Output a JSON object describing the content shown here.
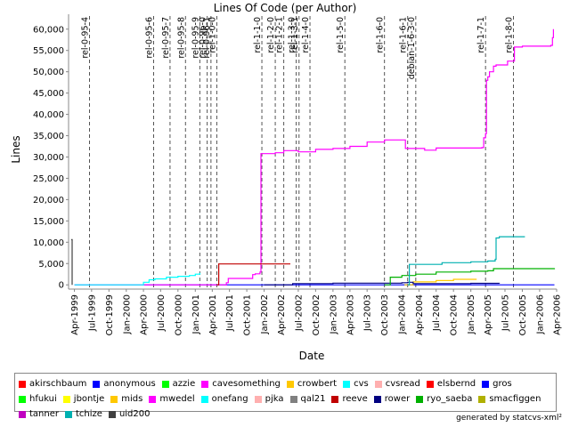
{
  "chart_data": {
    "type": "line",
    "title": "Lines Of Code (per Author)",
    "xlabel": "Date",
    "ylabel": "Lines",
    "xlim": [
      "1999-03-01",
      "2006-04-01"
    ],
    "ylim": [
      -1000,
      63500
    ],
    "y_ticks": [
      0,
      5000,
      10000,
      15000,
      20000,
      25000,
      30000,
      35000,
      40000,
      45000,
      50000,
      55000,
      60000
    ],
    "y_tick_labels": [
      "0",
      "5,000",
      "10,000",
      "15,000",
      "20,000",
      "25,000",
      "30,000",
      "35,000",
      "40,000",
      "45,000",
      "50,000",
      "55,000",
      "60,000"
    ],
    "x_ticks": [
      "1999-04-01",
      "1999-07-01",
      "1999-10-01",
      "2000-01-01",
      "2000-04-01",
      "2000-07-01",
      "2000-10-01",
      "2001-01-01",
      "2001-04-01",
      "2001-07-01",
      "2001-10-01",
      "2002-01-01",
      "2002-04-01",
      "2002-07-01",
      "2002-10-01",
      "2003-01-01",
      "2003-04-01",
      "2003-07-01",
      "2003-10-01",
      "2004-01-01",
      "2004-04-01",
      "2004-07-01",
      "2004-10-01",
      "2005-01-01",
      "2005-04-01",
      "2005-07-01",
      "2005-10-01",
      "2006-01-01",
      "2006-04-01"
    ],
    "x_tick_labels": [
      "Apr-1999",
      "Jul-1999",
      "Oct-1999",
      "Jan-2000",
      "Apr-2000",
      "Jul-2000",
      "Oct-2000",
      "Jan-2001",
      "Apr-2001",
      "Jul-2001",
      "Oct-2001",
      "Jan-2002",
      "Apr-2002",
      "Jul-2002",
      "Oct-2002",
      "Jan-2003",
      "Apr-2003",
      "Jul-2003",
      "Oct-2003",
      "Jan-2004",
      "Apr-2004",
      "Jul-2004",
      "Oct-2004",
      "Jan-2005",
      "Apr-2005",
      "Jul-2005",
      "Oct-2005",
      "Jan-2006",
      "Apr-2006"
    ],
    "grid": false,
    "legend_position": "bottom",
    "markers": [
      {
        "label": "rel-0-95-4",
        "date": "1999-06-20"
      },
      {
        "label": "rel-0-95-6",
        "date": "2000-05-25"
      },
      {
        "label": "rel-0-95-7",
        "date": "2000-08-20"
      },
      {
        "label": "rel-0-95-8",
        "date": "2000-11-10"
      },
      {
        "label": "rel-0-95-9",
        "date": "2001-01-25"
      },
      {
        "label": "rel-0-96-0",
        "date": "2001-03-05"
      },
      {
        "label": "rel-0-96-1",
        "date": "2001-03-25"
      },
      {
        "label": "rel-1-0-0",
        "date": "2001-04-25"
      },
      {
        "label": "rel-1-1-0",
        "date": "2001-12-20"
      },
      {
        "label": "rel-1-2-0",
        "date": "2002-03-01"
      },
      {
        "label": "rel-1-2-1",
        "date": "2002-04-15"
      },
      {
        "label": "rel-1-3-0",
        "date": "2002-06-20"
      },
      {
        "label": "rel-1-3-1",
        "date": "2002-07-05"
      },
      {
        "label": "rel-1-4-0",
        "date": "2002-09-01"
      },
      {
        "label": "rel-1-5-0",
        "date": "2003-03-05"
      },
      {
        "label": "rel-1-6-0",
        "date": "2003-10-01"
      },
      {
        "label": "rel-1-6-1",
        "date": "2004-02-01"
      },
      {
        "label": "debian-1-6-3-0",
        "date": "2004-03-15"
      },
      {
        "label": "rel-1-7-1",
        "date": "2005-03-20"
      },
      {
        "label": "rel-1-8-0",
        "date": "2005-08-15"
      }
    ],
    "series": [
      {
        "name": "akirschbaum",
        "color": "#ff0000",
        "points": []
      },
      {
        "name": "anonymous",
        "color": "#0000ff",
        "points": [
          [
            "1999-04-01",
            0
          ],
          [
            "2006-03-20",
            0
          ]
        ]
      },
      {
        "name": "azzie",
        "color": "#00ff00",
        "points": []
      },
      {
        "name": "cavesomething",
        "color": "#ff00ff",
        "points": []
      },
      {
        "name": "crowbert",
        "color": "#ffc800",
        "points": [
          [
            "2004-01-15",
            0
          ],
          [
            "2004-03-01",
            700
          ],
          [
            "2004-07-01",
            1000
          ],
          [
            "2004-10-01",
            1300
          ],
          [
            "2005-02-01",
            1300
          ]
        ]
      },
      {
        "name": "cvs",
        "color": "#00ffff",
        "points": []
      },
      {
        "name": "cvsread",
        "color": "#ffafaf",
        "points": []
      },
      {
        "name": "elsbernd",
        "color": "#ff0000",
        "points": []
      },
      {
        "name": "gros",
        "color": "#0000ff",
        "points": []
      },
      {
        "name": "hfukui",
        "color": "#00ff00",
        "points": []
      },
      {
        "name": "jbontje",
        "color": "#ffff00",
        "points": []
      },
      {
        "name": "mids",
        "color": "#ffc800",
        "points": []
      },
      {
        "name": "mwedel",
        "color": "#ff00ff",
        "points": [
          [
            "1999-04-01",
            0
          ],
          [
            "2001-06-15",
            500
          ],
          [
            "2001-06-25",
            1500
          ],
          [
            "2001-11-01",
            2400
          ],
          [
            "2001-11-15",
            2600
          ],
          [
            "2001-12-10",
            3000
          ],
          [
            "2001-12-15",
            30800
          ],
          [
            "2002-03-01",
            31000
          ],
          [
            "2002-04-15",
            31500
          ],
          [
            "2002-07-01",
            31200
          ],
          [
            "2002-10-01",
            31800
          ],
          [
            "2003-01-01",
            32000
          ],
          [
            "2003-04-01",
            32500
          ],
          [
            "2003-07-01",
            33500
          ],
          [
            "2003-10-01",
            34000
          ],
          [
            "2004-01-01",
            34000
          ],
          [
            "2004-01-20",
            32000
          ],
          [
            "2004-05-01",
            31600
          ],
          [
            "2004-07-01",
            32100
          ],
          [
            "2005-01-01",
            32100
          ],
          [
            "2005-03-01",
            32200
          ],
          [
            "2005-03-10",
            34500
          ],
          [
            "2005-03-20",
            35500
          ],
          [
            "2005-03-25",
            48000
          ],
          [
            "2005-04-01",
            48800
          ],
          [
            "2005-04-10",
            50000
          ],
          [
            "2005-05-01",
            51300
          ],
          [
            "2005-05-15",
            51600
          ],
          [
            "2005-07-01",
            51600
          ],
          [
            "2005-07-15",
            52500
          ],
          [
            "2005-08-15",
            52500
          ],
          [
            "2005-08-20",
            55800
          ],
          [
            "2005-10-01",
            56000
          ],
          [
            "2006-02-01",
            56000
          ],
          [
            "2006-03-01",
            56200
          ],
          [
            "2006-03-10",
            58000
          ],
          [
            "2006-03-15",
            60000
          ]
        ]
      },
      {
        "name": "onefang",
        "color": "#00ffff",
        "points": [
          [
            "1999-04-01",
            0
          ],
          [
            "2000-03-15",
            0
          ],
          [
            "2000-04-01",
            600
          ],
          [
            "2000-05-01",
            1200
          ],
          [
            "2000-06-01",
            1400
          ],
          [
            "2000-08-01",
            1800
          ],
          [
            "2000-10-01",
            2000
          ],
          [
            "2000-12-01",
            2200
          ],
          [
            "2001-01-01",
            2500
          ],
          [
            "2001-01-25",
            2800
          ]
        ]
      },
      {
        "name": "pjka",
        "color": "#ffafaf",
        "points": []
      },
      {
        "name": "qal21",
        "color": "#808080",
        "points": []
      },
      {
        "name": "reeve",
        "color": "#c00000",
        "points": [
          [
            "2001-04-25",
            0
          ],
          [
            "2001-05-05",
            4900
          ],
          [
            "2002-05-20",
            4900
          ]
        ]
      },
      {
        "name": "rower",
        "color": "#000080",
        "points": [
          [
            "2002-01-01",
            0
          ],
          [
            "2002-06-01",
            300
          ],
          [
            "2003-01-01",
            400
          ],
          [
            "2004-01-01",
            500
          ],
          [
            "2004-02-01",
            600
          ],
          [
            "2004-03-01",
            300
          ],
          [
            "2005-01-01",
            350
          ],
          [
            "2005-06-01",
            300
          ]
        ]
      },
      {
        "name": "ryo_saeba",
        "color": "#00b000",
        "points": [
          [
            "2003-10-01",
            0
          ],
          [
            "2003-11-01",
            1800
          ],
          [
            "2004-01-01",
            2200
          ],
          [
            "2004-03-15",
            2500
          ],
          [
            "2004-07-01",
            3000
          ],
          [
            "2005-01-01",
            3200
          ],
          [
            "2005-04-01",
            3300
          ],
          [
            "2005-05-01",
            3800
          ],
          [
            "2006-03-20",
            3900
          ]
        ]
      },
      {
        "name": "smacfiggen",
        "color": "#b0b000",
        "points": []
      },
      {
        "name": "tanner",
        "color": "#c000c0",
        "points": []
      },
      {
        "name": "tchize",
        "color": "#00b0b0",
        "points": [
          [
            "2004-02-01",
            0
          ],
          [
            "2004-02-10",
            4800
          ],
          [
            "2004-08-01",
            5200
          ],
          [
            "2005-01-01",
            5400
          ],
          [
            "2005-04-01",
            5600
          ],
          [
            "2005-05-10",
            6000
          ],
          [
            "2005-05-15",
            11000
          ],
          [
            "2005-06-01",
            11300
          ],
          [
            "2005-10-15",
            11300
          ]
        ]
      },
      {
        "name": "uid200",
        "color": "#404040",
        "points": [
          [
            "1999-03-15",
            10600
          ],
          [
            "1999-03-20",
            0
          ]
        ]
      }
    ]
  },
  "footer": "generated by statcvs-xml²"
}
